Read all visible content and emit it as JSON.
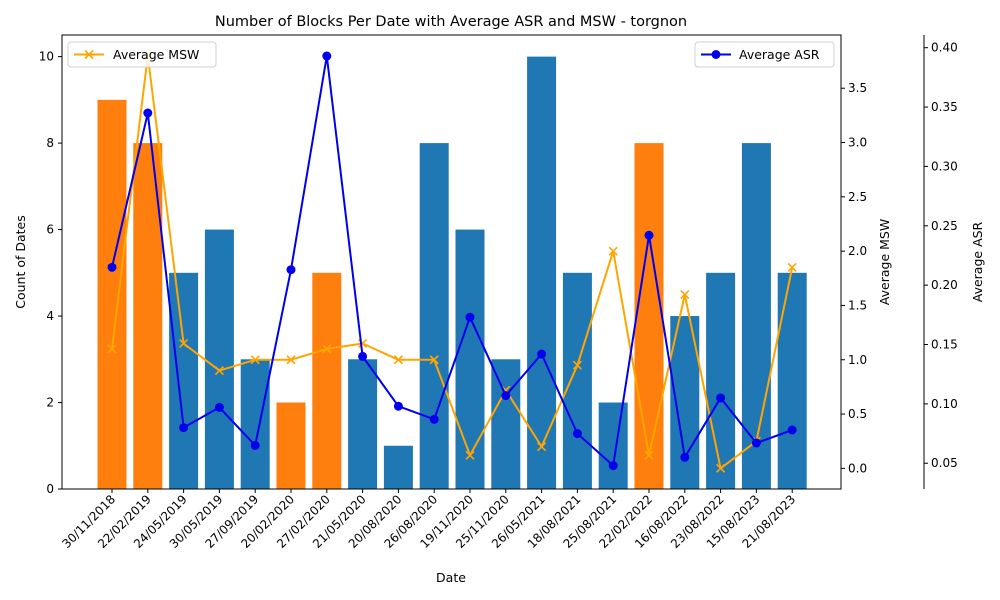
{
  "chart_data": {
    "type": "bar",
    "title": "Number of Blocks Per Date with Average ASR and MSW - torgnon",
    "xlabel": "Date",
    "ylabel": "Count of Dates",
    "ylabel_msw": "Average MSW",
    "ylabel_asr": "Average ASR",
    "categories": [
      "30/11/2018",
      "22/02/2019",
      "24/05/2019",
      "30/05/2019",
      "27/09/2019",
      "20/02/2020",
      "27/02/2020",
      "21/05/2020",
      "20/08/2020",
      "26/08/2020",
      "19/11/2020",
      "25/11/2020",
      "26/05/2021",
      "18/08/2021",
      "25/08/2021",
      "22/02/2022",
      "16/08/2022",
      "23/08/2022",
      "15/08/2023",
      "21/08/2023"
    ],
    "counts": [
      9,
      8,
      5,
      6,
      3,
      2,
      5,
      3,
      1,
      8,
      6,
      3,
      10,
      5,
      2,
      8,
      4,
      5,
      8,
      5
    ],
    "bar_colors": [
      "#ff7f0e",
      "#ff7f0e",
      "#1f77b4",
      "#1f77b4",
      "#1f77b4",
      "#ff7f0e",
      "#ff7f0e",
      "#1f77b4",
      "#1f77b4",
      "#1f77b4",
      "#1f77b4",
      "#1f77b4",
      "#1f77b4",
      "#1f77b4",
      "#1f77b4",
      "#ff7f0e",
      "#1f77b4",
      "#1f77b4",
      "#1f77b4",
      "#1f77b4"
    ],
    "series": [
      {
        "name": "Average MSW",
        "axis": "msw",
        "color": "#ffa500",
        "marker": "x",
        "values": [
          1.1,
          3.8,
          1.15,
          0.9,
          1.0,
          1.0,
          1.1,
          1.15,
          1.0,
          1.0,
          0.12,
          0.72,
          0.2,
          0.95,
          2.0,
          0.12,
          1.6,
          0.0,
          0.25,
          1.85
        ]
      },
      {
        "name": "Average ASR",
        "axis": "asr",
        "color": "#0000ee",
        "marker": "o",
        "values": [
          0.215,
          0.345,
          0.08,
          0.097,
          0.065,
          0.213,
          0.393,
          0.14,
          0.098,
          0.087,
          0.173,
          0.107,
          0.142,
          0.075,
          0.048,
          0.242,
          0.055,
          0.105,
          0.067,
          0.078
        ]
      }
    ],
    "ylim_count": [
      0,
      10.5
    ],
    "yticks_count": [
      0,
      2,
      4,
      6,
      8,
      10
    ],
    "ylim_msw": [
      -0.19,
      3.99
    ],
    "yticks_msw": [
      "0.0",
      "0.5",
      "1.0",
      "1.5",
      "2.0",
      "2.5",
      "3.0",
      "3.5"
    ],
    "ylim_asr": [
      0.0283,
      0.4107
    ],
    "yticks_asr": [
      "0.05",
      "0.10",
      "0.15",
      "0.20",
      "0.25",
      "0.30",
      "0.35",
      "0.40"
    ],
    "legend_msw_position": "upper-left",
    "legend_asr_position": "upper-right",
    "grid": false
  }
}
